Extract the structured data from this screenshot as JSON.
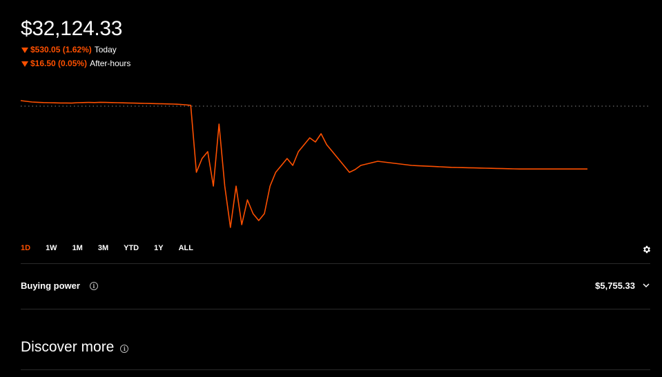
{
  "portfolio": {
    "value": "$32,124.33",
    "today_change": "$530.05 (1.62%)",
    "today_label": "Today",
    "after_hours_change": "$16.50 (0.05%)",
    "after_hours_label": "After-hours"
  },
  "colors": {
    "accent": "#ff5000",
    "background": "#000000",
    "text": "#ffffff",
    "divider": "#2a2a2a"
  },
  "time_ranges": [
    "1D",
    "1W",
    "1M",
    "3M",
    "YTD",
    "1Y",
    "ALL"
  ],
  "active_range": "1D",
  "buying_power": {
    "label": "Buying power",
    "value": "$5,755.33"
  },
  "discover": {
    "title": "Discover more"
  },
  "icons": {
    "settings": "gear-icon",
    "info": "info-icon",
    "expand": "chevron-down-icon",
    "change": "down-triangle-icon"
  },
  "chart_data": {
    "type": "line",
    "title": "",
    "xlabel": "",
    "ylabel": "",
    "grid": false,
    "reference_line": "dotted previous close",
    "x": [
      0,
      1,
      2,
      3,
      4,
      5,
      6,
      7,
      8,
      9,
      10,
      11,
      12,
      13,
      14,
      15,
      16,
      17,
      18,
      19,
      20,
      21,
      22,
      23,
      24,
      25,
      26,
      27,
      28,
      29,
      30,
      31,
      32,
      33,
      34,
      35,
      36,
      37,
      38,
      39,
      40,
      41,
      42,
      43,
      44,
      45,
      46,
      47,
      48,
      49,
      50,
      51,
      52,
      53,
      54,
      55,
      56,
      57,
      58,
      59,
      60,
      61,
      62,
      63,
      64,
      65,
      66,
      67,
      68,
      69,
      70,
      71,
      72,
      73,
      74,
      75,
      76,
      77,
      78,
      79,
      80,
      81,
      82,
      83,
      84,
      85,
      86,
      87,
      88,
      89,
      90,
      91,
      92,
      93,
      94,
      95,
      96,
      97,
      98,
      99,
      100
    ],
    "series": [
      {
        "values": [
          32620,
          32615,
          32610,
          32608,
          32606,
          32605,
          32604,
          32603,
          32603,
          32602,
          32605,
          32606,
          32607,
          32606,
          32608,
          32607,
          32606,
          32605,
          32604,
          32603,
          32602,
          32601,
          32600,
          32599,
          32598,
          32597,
          32596,
          32595,
          32593,
          32590,
          32586,
          32100,
          32200,
          32250,
          32000,
          32450,
          32000,
          31700,
          32000,
          31720,
          31900,
          31800,
          31750,
          31800,
          32000,
          32100,
          32150,
          32200,
          32150,
          32250,
          32300,
          32350,
          32320,
          32380,
          32300,
          32250,
          32200,
          32150,
          32100,
          32120,
          32150,
          32160,
          32170,
          32180,
          32175,
          32170,
          32165,
          32160,
          32155,
          32150,
          32148,
          32146,
          32144,
          32142,
          32140,
          32138,
          32136,
          32135,
          32134,
          32133,
          32132,
          32131,
          32130,
          32129,
          32128,
          32127,
          32126,
          32125,
          32124,
          32124,
          32124,
          32124,
          32124,
          32124,
          32124,
          32124,
          32124,
          32124,
          32124,
          32124,
          32124
        ],
        "color": "#ff5000"
      }
    ]
  }
}
